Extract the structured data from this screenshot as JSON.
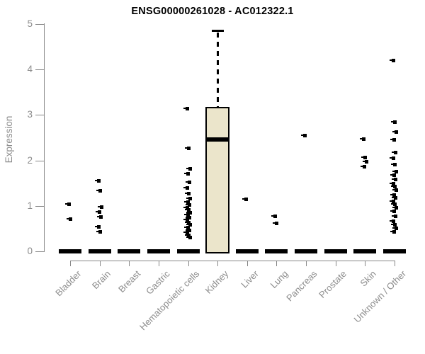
{
  "title": "ENSG00000261028 - AC012322.1",
  "chart_data": {
    "type": "box",
    "title": "ENSG00000261028 - AC012322.1",
    "xlabel": "",
    "ylabel": "Expression",
    "ylim": [
      0,
      5
    ],
    "yticks": [
      0,
      1,
      2,
      3,
      4,
      5
    ],
    "grid": false,
    "legend": "none",
    "colors": {
      "box_fill": "#ebe5cb",
      "box_border": "#000000",
      "median": "#000000",
      "point": "#000000",
      "axis": "#878787",
      "tick_label": "#8c8c8c",
      "title": "#000000",
      "background": "#ffffff"
    },
    "categories": [
      "Bladder",
      "Brain",
      "Breast",
      "Gastric",
      "Hematopoietic cells",
      "Kidney",
      "Liver",
      "Lung",
      "Pancreas",
      "Prostate",
      "Skin",
      "Unknown / Other"
    ],
    "boxes": [
      {
        "category": "Bladder",
        "q1": 0,
        "median": 0,
        "q3": 0,
        "whisker_low": 0,
        "whisker_high": 0,
        "outliers": [
          1.05,
          0.72
        ]
      },
      {
        "category": "Brain",
        "q1": 0,
        "median": 0,
        "q3": 0,
        "whisker_low": 0,
        "whisker_high": 0,
        "outliers": [
          1.56,
          1.34,
          0.98,
          0.88,
          0.76,
          0.54,
          0.43
        ]
      },
      {
        "category": "Breast",
        "q1": 0,
        "median": 0,
        "q3": 0,
        "whisker_low": 0,
        "whisker_high": 0,
        "outliers": []
      },
      {
        "category": "Gastric",
        "q1": 0,
        "median": 0,
        "q3": 0,
        "whisker_low": 0,
        "whisker_high": 0,
        "outliers": []
      },
      {
        "category": "Hematopoietic cells",
        "q1": 0,
        "median": 0,
        "q3": 0,
        "whisker_low": 0,
        "whisker_high": 0,
        "outliers": [
          3.15,
          2.27,
          1.83,
          1.71,
          1.53,
          1.4,
          1.28,
          1.17,
          1.09,
          1.03,
          0.97,
          0.92,
          0.86,
          0.81,
          0.75,
          0.7,
          0.64,
          0.59,
          0.53,
          0.47,
          0.42,
          0.36,
          0.31
        ]
      },
      {
        "category": "Kidney",
        "q1": 0,
        "median": 2.46,
        "q3": 3.18,
        "whisker_low": 0,
        "whisker_high": 4.86,
        "outliers": []
      },
      {
        "category": "Liver",
        "q1": 0,
        "median": 0,
        "q3": 0,
        "whisker_low": 0,
        "whisker_high": 0,
        "outliers": [
          1.15
        ]
      },
      {
        "category": "Lung",
        "q1": 0,
        "median": 0,
        "q3": 0,
        "whisker_low": 0,
        "whisker_high": 0,
        "outliers": [
          0.78,
          0.62
        ]
      },
      {
        "category": "Pancreas",
        "q1": 0,
        "median": 0,
        "q3": 0,
        "whisker_low": 0,
        "whisker_high": 0,
        "outliers": [
          2.55
        ]
      },
      {
        "category": "Prostate",
        "q1": 0,
        "median": 0,
        "q3": 0,
        "whisker_low": 0,
        "whisker_high": 0,
        "outliers": []
      },
      {
        "category": "Skin",
        "q1": 0,
        "median": 0,
        "q3": 0,
        "whisker_low": 0,
        "whisker_high": 0,
        "outliers": [
          2.48,
          2.07,
          1.98,
          1.87
        ]
      },
      {
        "category": "Unknown / Other",
        "q1": 0,
        "median": 0,
        "q3": 0,
        "whisker_low": 0,
        "whisker_high": 0,
        "outliers": [
          4.21,
          2.85,
          2.63,
          2.46,
          2.18,
          2.06,
          1.92,
          1.76,
          1.68,
          1.59,
          1.5,
          1.43,
          1.35,
          1.25,
          1.18,
          1.11,
          1.04,
          0.97,
          0.89,
          0.78,
          0.67,
          0.59,
          0.51,
          0.44
        ]
      }
    ]
  }
}
